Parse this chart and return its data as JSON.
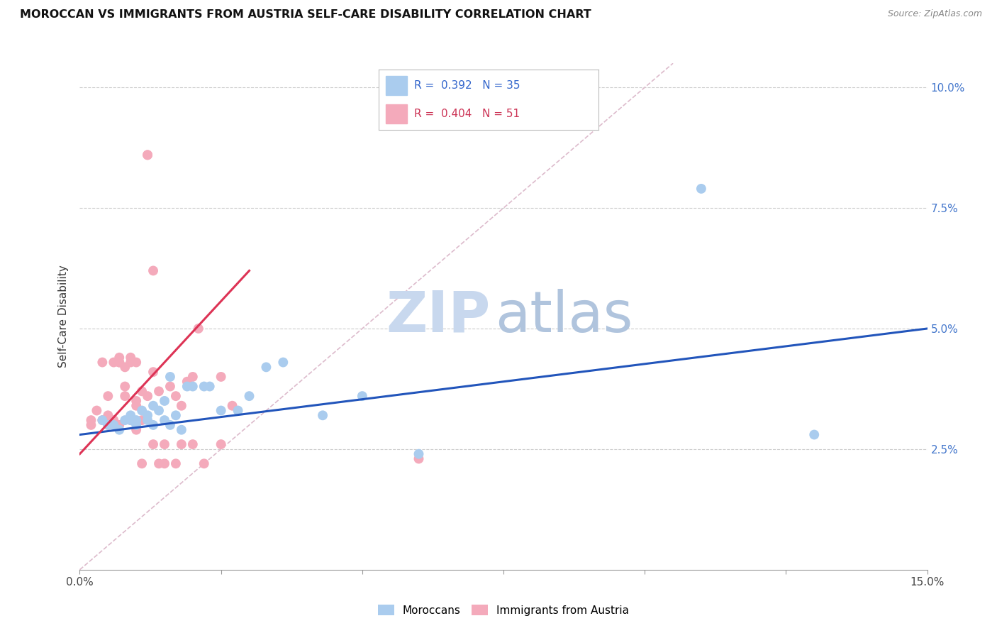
{
  "title": "MOROCCAN VS IMMIGRANTS FROM AUSTRIA SELF-CARE DISABILITY CORRELATION CHART",
  "source": "Source: ZipAtlas.com",
  "ylabel": "Self-Care Disability",
  "xlim": [
    0.0,
    0.15
  ],
  "ylim": [
    0.0,
    0.105
  ],
  "blue_R": "0.392",
  "blue_N": "35",
  "pink_R": "0.404",
  "pink_N": "51",
  "blue_color": "#aaccee",
  "pink_color": "#f4aabb",
  "blue_line_color": "#2255bb",
  "pink_line_color": "#dd3355",
  "diagonal_color": "#ddbbcc",
  "legend_label_blue": "Moroccans",
  "legend_label_pink": "Immigrants from Austria",
  "blue_scatter": [
    [
      0.004,
      0.031
    ],
    [
      0.005,
      0.03
    ],
    [
      0.006,
      0.03
    ],
    [
      0.007,
      0.029
    ],
    [
      0.008,
      0.031
    ],
    [
      0.009,
      0.032
    ],
    [
      0.009,
      0.031
    ],
    [
      0.01,
      0.03
    ],
    [
      0.01,
      0.031
    ],
    [
      0.011,
      0.033
    ],
    [
      0.012,
      0.032
    ],
    [
      0.012,
      0.031
    ],
    [
      0.013,
      0.034
    ],
    [
      0.013,
      0.03
    ],
    [
      0.014,
      0.033
    ],
    [
      0.015,
      0.035
    ],
    [
      0.015,
      0.031
    ],
    [
      0.016,
      0.04
    ],
    [
      0.016,
      0.03
    ],
    [
      0.017,
      0.032
    ],
    [
      0.018,
      0.029
    ],
    [
      0.019,
      0.038
    ],
    [
      0.02,
      0.038
    ],
    [
      0.022,
      0.038
    ],
    [
      0.023,
      0.038
    ],
    [
      0.025,
      0.033
    ],
    [
      0.028,
      0.033
    ],
    [
      0.03,
      0.036
    ],
    [
      0.033,
      0.042
    ],
    [
      0.036,
      0.043
    ],
    [
      0.043,
      0.032
    ],
    [
      0.05,
      0.036
    ],
    [
      0.06,
      0.024
    ],
    [
      0.11,
      0.079
    ],
    [
      0.13,
      0.028
    ]
  ],
  "pink_scatter": [
    [
      0.002,
      0.031
    ],
    [
      0.002,
      0.03
    ],
    [
      0.003,
      0.033
    ],
    [
      0.004,
      0.043
    ],
    [
      0.004,
      0.031
    ],
    [
      0.005,
      0.036
    ],
    [
      0.005,
      0.032
    ],
    [
      0.005,
      0.03
    ],
    [
      0.006,
      0.043
    ],
    [
      0.006,
      0.031
    ],
    [
      0.007,
      0.044
    ],
    [
      0.007,
      0.043
    ],
    [
      0.007,
      0.043
    ],
    [
      0.007,
      0.03
    ],
    [
      0.008,
      0.042
    ],
    [
      0.008,
      0.038
    ],
    [
      0.008,
      0.036
    ],
    [
      0.009,
      0.043
    ],
    [
      0.009,
      0.044
    ],
    [
      0.009,
      0.031
    ],
    [
      0.01,
      0.043
    ],
    [
      0.01,
      0.035
    ],
    [
      0.01,
      0.034
    ],
    [
      0.01,
      0.029
    ],
    [
      0.011,
      0.037
    ],
    [
      0.011,
      0.031
    ],
    [
      0.011,
      0.022
    ],
    [
      0.012,
      0.086
    ],
    [
      0.012,
      0.086
    ],
    [
      0.012,
      0.036
    ],
    [
      0.013,
      0.062
    ],
    [
      0.013,
      0.041
    ],
    [
      0.013,
      0.026
    ],
    [
      0.014,
      0.037
    ],
    [
      0.014,
      0.022
    ],
    [
      0.015,
      0.026
    ],
    [
      0.015,
      0.022
    ],
    [
      0.016,
      0.038
    ],
    [
      0.017,
      0.036
    ],
    [
      0.017,
      0.022
    ],
    [
      0.018,
      0.034
    ],
    [
      0.018,
      0.026
    ],
    [
      0.019,
      0.039
    ],
    [
      0.02,
      0.04
    ],
    [
      0.02,
      0.026
    ],
    [
      0.021,
      0.05
    ],
    [
      0.022,
      0.022
    ],
    [
      0.025,
      0.026
    ],
    [
      0.025,
      0.04
    ],
    [
      0.027,
      0.034
    ],
    [
      0.06,
      0.023
    ]
  ],
  "blue_trendline": [
    [
      0.0,
      0.028
    ],
    [
      0.15,
      0.05
    ]
  ],
  "pink_trendline": [
    [
      0.0,
      0.024
    ],
    [
      0.03,
      0.062
    ]
  ],
  "diagonal_line": [
    [
      0.0,
      0.0
    ],
    [
      0.105,
      0.105
    ]
  ]
}
